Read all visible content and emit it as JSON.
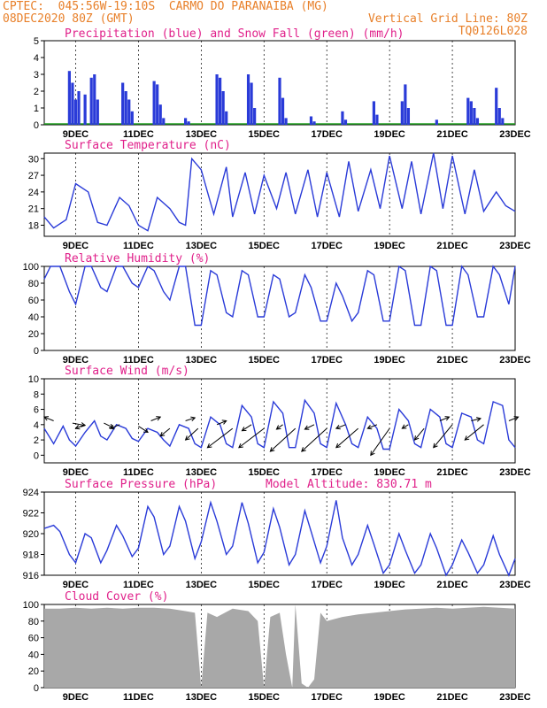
{
  "header": {
    "line1": "CPTEC:  045:56W-19:10S  CARMO DO PARANAIBA (MG)",
    "line2": "08DEC2020 80Z (GMT)",
    "vertical_grid_line": "Vertical Grid Line: 80Z",
    "model_code": "TQ0126L028"
  },
  "colors": {
    "header": "#e8802a",
    "panel_title": "#e0208a",
    "line": "#2a3bd8",
    "precip": "#2a3bd8",
    "snow": "#22a022",
    "cloud": "#a8a8a8",
    "arrow": "#000000"
  },
  "x_ticks": [
    "9DEC",
    "11DEC",
    "13DEC",
    "15DEC",
    "17DEC",
    "19DEC",
    "21DEC",
    "23DEC"
  ],
  "chart_data": [
    {
      "id": "precip",
      "type": "bar",
      "title": "Precipitation (blue) and Snow Fall (green) (mm/h)",
      "ylim": [
        0,
        5
      ],
      "yticks": [
        "0",
        "1",
        "2",
        "3",
        "4",
        "5"
      ],
      "series": [
        {
          "name": "Precipitation",
          "x": [
            8.8,
            8.9,
            9.0,
            9.1,
            9.3,
            9.5,
            9.6,
            9.7,
            10.5,
            10.6,
            10.7,
            10.8,
            11.5,
            11.6,
            11.7,
            11.8,
            12.5,
            12.6,
            13.5,
            13.6,
            13.7,
            13.8,
            14.5,
            14.6,
            14.7,
            15.5,
            15.6,
            15.7,
            16.5,
            16.6,
            17.5,
            17.6,
            18.5,
            18.6,
            19.4,
            19.5,
            19.6,
            20.5,
            21.5,
            21.6,
            21.7,
            21.8,
            22.4,
            22.5,
            22.6
          ],
          "values": [
            3.2,
            2.5,
            1.5,
            2.0,
            1.8,
            2.8,
            3.0,
            1.5,
            2.5,
            2.0,
            1.5,
            0.8,
            2.6,
            2.4,
            1.2,
            0.4,
            0.4,
            0.2,
            3.0,
            2.8,
            2.0,
            0.8,
            3.0,
            2.5,
            1.0,
            2.8,
            1.6,
            0.4,
            0.5,
            0.2,
            0.8,
            0.3,
            1.4,
            0.6,
            1.4,
            2.4,
            1.0,
            0.3,
            1.6,
            1.4,
            1.0,
            0.4,
            2.2,
            1.0,
            0.4
          ]
        },
        {
          "name": "Snow Fall",
          "x": [],
          "values": []
        }
      ]
    },
    {
      "id": "temp",
      "type": "line",
      "title": "Surface Temperature (nC)",
      "ylim": [
        16,
        31
      ],
      "yticks": [
        "18",
        "21",
        "24",
        "27",
        "30"
      ],
      "series": [
        {
          "name": "Surface Temperature",
          "x": [
            8.0,
            8.3,
            8.7,
            9.0,
            9.4,
            9.7,
            10.0,
            10.4,
            10.7,
            11.0,
            11.3,
            11.6,
            12.0,
            12.3,
            12.5,
            12.7,
            13.0,
            13.4,
            13.8,
            14.0,
            14.4,
            14.7,
            15.0,
            15.4,
            15.7,
            16.0,
            16.4,
            16.7,
            17.0,
            17.4,
            17.7,
            18.0,
            18.4,
            18.7,
            19.0,
            19.4,
            19.7,
            20.0,
            20.4,
            20.7,
            21.0,
            21.4,
            21.7,
            22.0,
            22.4,
            22.7,
            23.0
          ],
          "values": [
            19.5,
            17.5,
            19,
            25.5,
            24,
            18.5,
            18,
            23,
            21.5,
            18,
            17,
            23,
            21,
            18.5,
            18,
            30,
            28,
            20,
            28.5,
            19.5,
            27.5,
            20,
            27,
            21,
            27.5,
            20,
            28,
            19.5,
            27.5,
            19.5,
            29.5,
            20.5,
            28,
            21,
            30.5,
            21,
            29.5,
            20,
            31,
            21,
            30.5,
            20,
            28,
            20.5,
            24,
            21.5,
            20.5
          ]
        }
      ]
    },
    {
      "id": "rh",
      "type": "line",
      "title": "Relative Humidity (%)",
      "ylim": [
        0,
        100
      ],
      "yticks": [
        "0",
        "20",
        "40",
        "60",
        "80",
        "100"
      ],
      "series": [
        {
          "name": "Relative Humidity",
          "x": [
            8.0,
            8.2,
            8.5,
            8.8,
            9.0,
            9.3,
            9.5,
            9.8,
            10.0,
            10.3,
            10.5,
            10.8,
            11.0,
            11.3,
            11.5,
            11.8,
            12.0,
            12.3,
            12.5,
            12.8,
            13.0,
            13.3,
            13.5,
            13.8,
            14.0,
            14.3,
            14.5,
            14.8,
            15.0,
            15.3,
            15.5,
            15.8,
            16.0,
            16.3,
            16.5,
            16.8,
            17.0,
            17.3,
            17.5,
            17.8,
            18.0,
            18.3,
            18.5,
            18.8,
            19.0,
            19.3,
            19.5,
            19.8,
            20.0,
            20.3,
            20.5,
            20.8,
            21.0,
            21.3,
            21.5,
            21.8,
            22.0,
            22.3,
            22.5,
            22.8,
            23.0
          ],
          "values": [
            85,
            100,
            100,
            70,
            55,
            100,
            100,
            75,
            70,
            100,
            100,
            80,
            75,
            100,
            95,
            70,
            60,
            100,
            100,
            30,
            30,
            95,
            90,
            45,
            40,
            95,
            90,
            40,
            40,
            90,
            85,
            40,
            45,
            90,
            75,
            35,
            35,
            80,
            65,
            35,
            45,
            95,
            90,
            35,
            35,
            100,
            95,
            30,
            30,
            100,
            95,
            30,
            30,
            100,
            90,
            40,
            40,
            100,
            90,
            55,
            100
          ]
        }
      ]
    },
    {
      "id": "wind",
      "type": "line",
      "title": "Surface Wind (m/s)",
      "ylim": [
        -1,
        10
      ],
      "yticks": [
        "0",
        "2",
        "4",
        "6",
        "8",
        "10"
      ],
      "series": [
        {
          "name": "Surface Wind",
          "x": [
            8.0,
            8.3,
            8.6,
            8.8,
            9.0,
            9.3,
            9.6,
            9.8,
            10.0,
            10.3,
            10.6,
            10.8,
            11.0,
            11.3,
            11.6,
            11.8,
            12.0,
            12.3,
            12.6,
            12.8,
            13.0,
            13.3,
            13.6,
            13.8,
            14.0,
            14.3,
            14.6,
            14.8,
            15.0,
            15.3,
            15.6,
            15.8,
            16.0,
            16.3,
            16.6,
            16.8,
            17.0,
            17.3,
            17.6,
            17.8,
            18.0,
            18.3,
            18.6,
            18.8,
            19.0,
            19.3,
            19.6,
            19.8,
            20.0,
            20.3,
            20.6,
            20.8,
            21.0,
            21.3,
            21.6,
            21.8,
            22.0,
            22.3,
            22.6,
            22.8,
            23.0
          ],
          "values": [
            3.5,
            1.5,
            3.8,
            2.0,
            1.2,
            3.0,
            4.5,
            2.5,
            2.0,
            4.0,
            3.5,
            2.2,
            1.8,
            3.5,
            3.0,
            2.0,
            1.2,
            4.0,
            3.5,
            1.5,
            1.0,
            5.0,
            4.0,
            1.5,
            1.0,
            6.5,
            5.0,
            1.5,
            1.0,
            7.0,
            5.5,
            1.0,
            1.0,
            7.2,
            5.5,
            1.5,
            1.0,
            6.8,
            4.0,
            1.5,
            1.0,
            5.0,
            3.5,
            0.8,
            0.8,
            6.0,
            4.5,
            1.5,
            1.0,
            6.0,
            5.0,
            1.5,
            1.0,
            5.5,
            5.0,
            2.0,
            1.5,
            7.0,
            6.5,
            2.0,
            1.0
          ]
        }
      ],
      "arrows": [
        {
          "x": 8.3,
          "y": 4.5,
          "dx": -0.3,
          "dy": 0.5
        },
        {
          "x": 8.9,
          "y": 4.2,
          "dx": 0.4,
          "dy": -0.3
        },
        {
          "x": 9.3,
          "y": 4.0,
          "dx": -0.3,
          "dy": -0.5
        },
        {
          "x": 9.9,
          "y": 4.2,
          "dx": 0.3,
          "dy": -0.6
        },
        {
          "x": 10.4,
          "y": 4.0,
          "dx": -0.3,
          "dy": -0.5
        },
        {
          "x": 11.0,
          "y": 3.8,
          "dx": 0.3,
          "dy": -0.8
        },
        {
          "x": 11.4,
          "y": 4.5,
          "dx": 0.3,
          "dy": 0.5
        },
        {
          "x": 12.0,
          "y": 3.5,
          "dx": -0.3,
          "dy": -1.0
        },
        {
          "x": 12.5,
          "y": 4.5,
          "dx": 0.3,
          "dy": 0.4
        },
        {
          "x": 12.9,
          "y": 3.5,
          "dx": -0.4,
          "dy": -1.5
        },
        {
          "x": 13.5,
          "y": 4.0,
          "dx": 0.3,
          "dy": 0.5
        },
        {
          "x": 14.0,
          "y": 3.5,
          "dx": -0.8,
          "dy": -2.5
        },
        {
          "x": 14.6,
          "y": 4.0,
          "dx": -0.3,
          "dy": -0.8
        },
        {
          "x": 15.0,
          "y": 3.5,
          "dx": -0.8,
          "dy": -2.5
        },
        {
          "x": 15.6,
          "y": 4.0,
          "dx": -0.2,
          "dy": -0.6
        },
        {
          "x": 16.0,
          "y": 3.5,
          "dx": -0.8,
          "dy": -3.0
        },
        {
          "x": 16.6,
          "y": 4.0,
          "dx": -0.3,
          "dy": -0.6
        },
        {
          "x": 17.0,
          "y": 3.5,
          "dx": -0.8,
          "dy": -3.0
        },
        {
          "x": 17.6,
          "y": 4.0,
          "dx": -0.3,
          "dy": -0.5
        },
        {
          "x": 18.0,
          "y": 3.5,
          "dx": -0.7,
          "dy": -2.5
        },
        {
          "x": 18.6,
          "y": 4.0,
          "dx": -0.3,
          "dy": -0.5
        },
        {
          "x": 19.0,
          "y": 3.5,
          "dx": -0.6,
          "dy": -3.5
        },
        {
          "x": 19.6,
          "y": 4.0,
          "dx": -0.2,
          "dy": -0.5
        },
        {
          "x": 20.1,
          "y": 3.5,
          "dx": -0.3,
          "dy": -1.5
        },
        {
          "x": 20.6,
          "y": 4.5,
          "dx": 0.3,
          "dy": 0.5
        },
        {
          "x": 21.0,
          "y": 4.0,
          "dx": -0.6,
          "dy": -3.0
        },
        {
          "x": 21.6,
          "y": 4.5,
          "dx": 0.3,
          "dy": 0.3
        },
        {
          "x": 22.0,
          "y": 4.0,
          "dx": -0.6,
          "dy": -2.0
        },
        {
          "x": 22.8,
          "y": 4.5,
          "dx": 0.3,
          "dy": 0.5
        }
      ]
    },
    {
      "id": "pressure",
      "type": "line",
      "title": "Surface Pressure (hPa)",
      "subtitle": "Model Altitude: 830.71 m",
      "ylim": [
        916,
        924
      ],
      "yticks": [
        "916",
        "918",
        "920",
        "922",
        "924"
      ],
      "series": [
        {
          "name": "Surface Pressure",
          "x": [
            8.0,
            8.3,
            8.5,
            8.8,
            9.0,
            9.3,
            9.5,
            9.8,
            10.0,
            10.3,
            10.5,
            10.8,
            11.0,
            11.3,
            11.5,
            11.8,
            12.0,
            12.3,
            12.5,
            12.8,
            13.0,
            13.3,
            13.5,
            13.8,
            14.0,
            14.3,
            14.5,
            14.8,
            15.0,
            15.3,
            15.5,
            15.8,
            16.0,
            16.3,
            16.5,
            16.8,
            17.0,
            17.3,
            17.5,
            17.8,
            18.0,
            18.3,
            18.5,
            18.8,
            19.0,
            19.3,
            19.5,
            19.8,
            20.0,
            20.3,
            20.5,
            20.8,
            21.0,
            21.3,
            21.5,
            21.8,
            22.0,
            22.3,
            22.5,
            22.8,
            23.0
          ],
          "values": [
            920.5,
            920.8,
            920.2,
            918.0,
            917.2,
            920.0,
            919.6,
            917.2,
            918.4,
            920.8,
            919.8,
            917.8,
            918.6,
            922.6,
            921.6,
            918.0,
            918.8,
            922.6,
            921.2,
            917.6,
            919.2,
            923.0,
            921.2,
            918.0,
            918.8,
            923.0,
            921.0,
            917.2,
            918.2,
            922.4,
            920.6,
            917.0,
            918.0,
            922.2,
            920.2,
            917.2,
            918.8,
            923.2,
            919.6,
            917.0,
            918.0,
            920.8,
            919.0,
            916.2,
            917.0,
            920.0,
            918.4,
            916.2,
            917.0,
            920.0,
            918.6,
            916.0,
            917.0,
            919.4,
            918.2,
            916.2,
            917.0,
            919.8,
            918.0,
            916.0,
            917.6
          ]
        }
      ]
    },
    {
      "id": "cloud",
      "type": "area",
      "title": "Cloud Cover (%)",
      "ylim": [
        0,
        100
      ],
      "yticks": [
        "0",
        "20",
        "40",
        "60",
        "80",
        "100"
      ],
      "series": [
        {
          "name": "Cloud Cover",
          "x": [
            8.0,
            8.5,
            9.0,
            9.5,
            10.0,
            10.5,
            11.0,
            11.5,
            12.0,
            12.5,
            12.8,
            13.0,
            13.2,
            13.5,
            14.0,
            14.5,
            14.8,
            15.0,
            15.2,
            15.5,
            15.7,
            15.9,
            16.0,
            16.2,
            16.4,
            16.6,
            16.8,
            17.0,
            17.5,
            18.0,
            18.5,
            19.0,
            19.5,
            20.0,
            20.5,
            21.0,
            21.5,
            22.0,
            22.5,
            23.0
          ],
          "values": [
            95,
            95,
            96,
            95,
            96,
            95,
            96,
            96,
            95,
            92,
            90,
            0,
            90,
            85,
            95,
            92,
            80,
            0,
            85,
            90,
            40,
            0,
            100,
            5,
            0,
            10,
            90,
            80,
            85,
            88,
            90,
            92,
            94,
            95,
            96,
            95,
            96,
            97,
            96,
            95
          ]
        }
      ]
    }
  ]
}
